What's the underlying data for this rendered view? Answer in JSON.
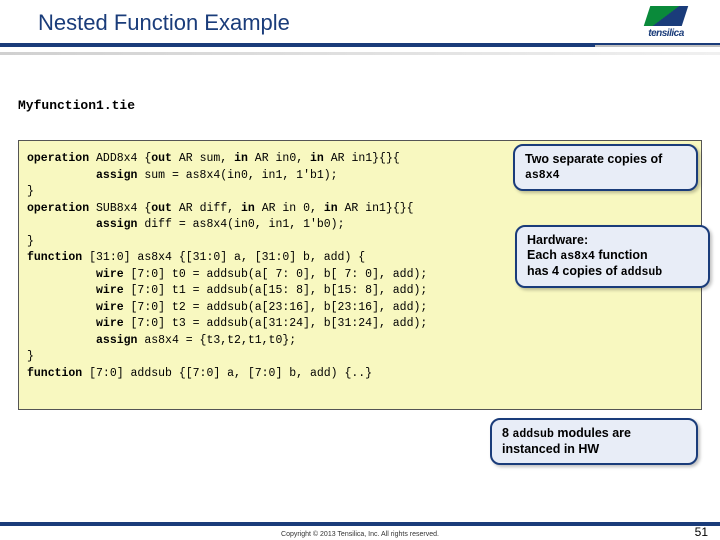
{
  "header": {
    "title": "Nested Function Example",
    "logo_text": "tensilica"
  },
  "filename": "Myfunction1.tie",
  "code": {
    "lines": [
      {
        "t": "kwline",
        "parts": [
          "operation",
          " ADD8x4 {",
          "out",
          " AR sum, ",
          "in",
          " AR in0, ",
          "in",
          " AR in1}{}{"
        ]
      },
      {
        "t": "asg",
        "parts": [
          "          ",
          "assign",
          " sum = as8x4(in0, in1, 1'b1);"
        ]
      },
      {
        "t": "plain",
        "text": "}"
      },
      {
        "t": "kwline",
        "parts": [
          "operation",
          " SUB8x4 {",
          "out",
          " AR diff, ",
          "in",
          " AR in 0, ",
          "in",
          " AR in1}{}{"
        ]
      },
      {
        "t": "asg",
        "parts": [
          "          ",
          "assign",
          " diff = as8x4(in0, in1, 1'b0);"
        ]
      },
      {
        "t": "plain",
        "text": "}"
      },
      {
        "t": "fn",
        "parts": [
          "function",
          " [31:0] as8x4 {[31:0] a, [31:0] b, add) {"
        ]
      },
      {
        "t": "wire",
        "parts": [
          "          ",
          "wire",
          " [7:0] t0 = addsub(a[ 7: 0], b[ 7: 0], add);"
        ]
      },
      {
        "t": "wire",
        "parts": [
          "          ",
          "wire",
          " [7:0] t1 = addsub(a[15: 8], b[15: 8], add);"
        ]
      },
      {
        "t": "wire",
        "parts": [
          "          ",
          "wire",
          " [7:0] t2 = addsub(a[23:16], b[23:16], add);"
        ]
      },
      {
        "t": "wire",
        "parts": [
          "          ",
          "wire",
          " [7:0] t3 = addsub(a[31:24], b[31:24], add);"
        ]
      },
      {
        "t": "asg",
        "parts": [
          "          ",
          "assign",
          " as8x4 = {t3,t2,t1,t0};"
        ]
      },
      {
        "t": "plain",
        "text": "}"
      },
      {
        "t": "fn",
        "parts": [
          "function",
          " [7:0] addsub {[7:0] a, [7:0] b, add) {..}"
        ]
      }
    ]
  },
  "callouts": {
    "c1": {
      "prefix": "Two separate copies of ",
      "mono": "as8x4"
    },
    "c2": {
      "line1": "Hardware:",
      "line2a": "Each ",
      "mono1": "as8x4",
      "line2b": " function",
      "line3a": "has 4 copies of ",
      "mono2": "addsub"
    },
    "c3": {
      "prefix": "8 ",
      "mono": "addsub",
      "suffix": " modules are instanced in HW"
    }
  },
  "footer": {
    "copyright": "Copyright © 2013  Tensilica, Inc. All rights reserved.",
    "page": "51"
  }
}
